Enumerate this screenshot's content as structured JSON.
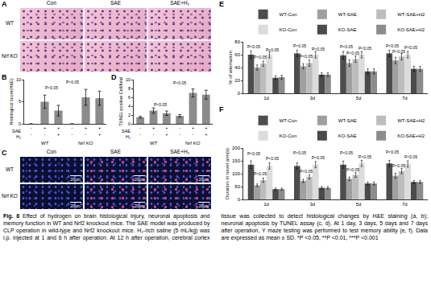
{
  "panels": [
    {
      "label": "A",
      "columns": [
        "Con",
        "SAE",
        "SAE+H₂"
      ],
      "rows": [
        "WT",
        "Nrf KO"
      ]
    },
    {
      "label": "C",
      "columns": [
        "Con",
        "SAE",
        "SAE+H₂"
      ],
      "rows": [
        "WT",
        "Nrf KO"
      ],
      "scale_bar": "20μm"
    }
  ],
  "chart_data": [
    {
      "label": "B",
      "type": "bar",
      "ylabel": "Histological score(H&E)",
      "categories": [
        [
          "-",
          "-"
        ],
        [
          "+",
          "-"
        ],
        [
          "+",
          "+"
        ],
        [
          "-",
          "-"
        ],
        [
          "+",
          "-"
        ],
        [
          "+",
          "+"
        ]
      ],
      "category_rows": [
        "SAE",
        "H₂"
      ],
      "groups": [
        {
          "label": "WT",
          "categories": [
            0,
            1,
            2
          ]
        },
        {
          "label": "Nrf KO",
          "categories": [
            3,
            4,
            5
          ]
        }
      ],
      "values": [
        0,
        5,
        3,
        0,
        6,
        5.8
      ],
      "errors": [
        0,
        1.5,
        1.2,
        0,
        1.8,
        1.6
      ],
      "color": "#8c8c8c",
      "ylim": [
        0,
        10
      ],
      "yticks": [
        0,
        5,
        10
      ],
      "annotations": [
        {
          "text": "P<0.05",
          "x": 1.5,
          "y": 8.2
        },
        {
          "text": "P<0.05",
          "x": 3,
          "y": 9.4
        }
      ]
    },
    {
      "label": "D",
      "type": "bar",
      "ylabel": "TUNEL positive Cell/field",
      "categories": [
        [
          "-",
          "-"
        ],
        [
          "+",
          "-"
        ],
        [
          "+",
          "+"
        ],
        [
          "-",
          "-"
        ],
        [
          "+",
          "-"
        ],
        [
          "+",
          "+"
        ]
      ],
      "category_rows": [
        "SAE",
        "H₂"
      ],
      "groups": [
        {
          "label": "WT",
          "categories": [
            0,
            1,
            2
          ]
        },
        {
          "label": "Nrf KO",
          "categories": [
            3,
            4,
            5
          ]
        }
      ],
      "values": [
        1.5,
        3,
        2.4,
        1.8,
        7,
        6.6
      ],
      "errors": [
        0.2,
        0.6,
        0.5,
        0.3,
        0.9,
        1.0
      ],
      "color": "#8c8c8c",
      "ylim": [
        0,
        10
      ],
      "yticks": [
        0,
        2,
        4,
        6,
        8,
        10
      ],
      "annotations": [
        {
          "text": "P<0.05",
          "x": 1.5,
          "y": 4.4
        },
        {
          "text": "P<0.05",
          "x": 3,
          "y": 9.2
        }
      ]
    },
    {
      "label": "E",
      "type": "bar",
      "ylabel": "% of alternation",
      "legend": "top",
      "categories": [
        "1d",
        "3d",
        "5d",
        "7d"
      ],
      "series": [
        {
          "name": "WT-Con",
          "color": "#4d4d4d",
          "values": [
            60,
            62,
            59,
            62
          ],
          "errors": [
            6,
            5,
            6,
            5
          ]
        },
        {
          "name": "WT-SAE",
          "color": "#a0a0a0",
          "values": [
            40,
            42,
            47,
            51
          ],
          "errors": [
            4,
            4,
            5,
            5
          ]
        },
        {
          "name": "WT-SAE+H2",
          "color": "#bdbdbd",
          "values": [
            46,
            47,
            53,
            57
          ],
          "errors": [
            4,
            5,
            5,
            5
          ]
        },
        {
          "name": "KO-Con",
          "color": "#dcdcdc",
          "values": [
            60,
            60,
            60,
            60
          ],
          "errors": [
            5,
            5,
            5,
            5
          ]
        },
        {
          "name": "KO-SAE",
          "color": "#4a4a4a",
          "values": [
            24,
            29,
            34,
            38
          ],
          "errors": [
            3,
            3,
            4,
            4
          ]
        },
        {
          "name": "KO-SAE+H2",
          "color": "#8c8c8c",
          "values": [
            25,
            29,
            34,
            38
          ],
          "errors": [
            3,
            3,
            4,
            4
          ]
        }
      ],
      "ylim": [
        0,
        80
      ],
      "yticks": [
        0,
        20,
        40,
        60,
        80
      ],
      "annotations": [
        {
          "text": "P<0.05",
          "x": -0.27,
          "y": 72
        },
        {
          "text": "P<0.05",
          "x": -0.13,
          "y": 56
        },
        {
          "text": "P<0.05",
          "x": 0.13,
          "y": 67
        },
        {
          "text": "P<0.05",
          "x": 0.73,
          "y": 74
        },
        {
          "text": "P<0.05",
          "x": 0.87,
          "y": 57
        },
        {
          "text": "P<0.05",
          "x": 1.13,
          "y": 69
        },
        {
          "text": "P<0.05",
          "x": 1.73,
          "y": 72
        },
        {
          "text": "P<0.05",
          "x": 1.87,
          "y": 62
        },
        {
          "text": "P<0.05",
          "x": 2.13,
          "y": 70
        },
        {
          "text": "P<0.05",
          "x": 2.73,
          "y": 74
        },
        {
          "text": "P<0.05",
          "x": 2.87,
          "y": 65
        },
        {
          "text": "P<0.05",
          "x": 3.13,
          "y": 71
        }
      ]
    },
    {
      "label": "F",
      "type": "bar",
      "ylabel": "Duration in novel arm(s)",
      "legend": "top",
      "categories": [
        "1d",
        "3d",
        "5d",
        "7d"
      ],
      "series": [
        {
          "name": "WT-Con",
          "color": "#4d4d4d",
          "values": [
            135,
            130,
            135,
            140
          ],
          "errors": [
            15,
            12,
            14,
            12
          ]
        },
        {
          "name": "WT-SAE",
          "color": "#a0a0a0",
          "values": [
            55,
            72,
            80,
            92
          ],
          "errors": [
            5,
            6,
            7,
            10
          ]
        },
        {
          "name": "WT-SAE+H2",
          "color": "#bdbdbd",
          "values": [
            75,
            88,
            95,
            110
          ],
          "errors": [
            8,
            8,
            9,
            10
          ]
        },
        {
          "name": "KO-Con",
          "color": "#dcdcdc",
          "values": [
            130,
            135,
            140,
            138
          ],
          "errors": [
            12,
            12,
            12,
            12
          ]
        },
        {
          "name": "KO-SAE",
          "color": "#4a4a4a",
          "values": [
            40,
            45,
            62,
            68
          ],
          "errors": [
            4,
            5,
            6,
            6
          ]
        },
        {
          "name": "KO-SAE+H2",
          "color": "#8c8c8c",
          "values": [
            40,
            45,
            62,
            68
          ],
          "errors": [
            4,
            5,
            6,
            6
          ]
        }
      ],
      "ylim": [
        0,
        200
      ],
      "yticks": [
        0,
        50,
        100,
        150,
        200
      ],
      "annotations": [
        {
          "text": "P<0.05",
          "x": -0.27,
          "y": 178
        },
        {
          "text": "P<0.05",
          "x": -0.13,
          "y": 100
        },
        {
          "text": "P<0.05",
          "x": 0.13,
          "y": 158
        },
        {
          "text": "P<0.05",
          "x": 0.73,
          "y": 180
        },
        {
          "text": "P<0.05",
          "x": 0.87,
          "y": 110
        },
        {
          "text": "P<0.05",
          "x": 1.13,
          "y": 162
        },
        {
          "text": "P<0.05",
          "x": 1.73,
          "y": 180
        },
        {
          "text": "P<0.05",
          "x": 1.87,
          "y": 116
        },
        {
          "text": "P<0.05",
          "x": 2.13,
          "y": 166
        },
        {
          "text": "P<0.05",
          "x": 2.73,
          "y": 185
        },
        {
          "text": "P<0.05",
          "x": 2.87,
          "y": 132
        },
        {
          "text": "P<0.05",
          "x": 3.13,
          "y": 166
        }
      ]
    }
  ],
  "caption": {
    "label": "Fig. 8",
    "text": "Effect of hydrogen on brain histological injury, neuronal apoptosis and memory function in WT and Nrf2 knockout mice. The SAE model was produced by CLP operation in wild-type and Nrf2 knockout mice. H₂-rich saline (5 mL/kg) was i.p. injected at 1 and 6 h after operation. At 12 h after operation, cerebral cortex tissue was collected to detect histological changes by H&E staining (a, b); neuronal apoptosis by TUNEL assay (c, d). At 1 day, 3 days, 5 days and 7 days after operation, Y maze testing was performed to test memory ability (e, f). Data are expressed as mean ± SD. *P <0.05, **P <0.01, ***P <0.001"
  }
}
